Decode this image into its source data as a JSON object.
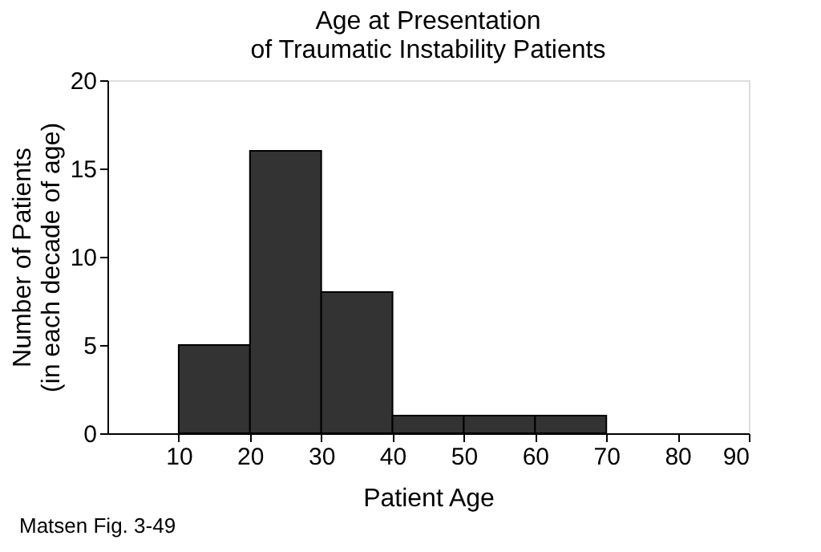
{
  "chart_data": {
    "type": "histogram",
    "title": "Age at Presentation\nof Traumatic Instability Patients",
    "xlabel": "Patient Age",
    "ylabel": "Number of Patients\n(in each decade of age)",
    "bins": [
      10,
      20,
      30,
      40,
      50,
      60,
      70
    ],
    "values": [
      5,
      16,
      8,
      1,
      1,
      1
    ],
    "color": "#333333",
    "xlim": [
      0,
      90
    ],
    "xticks": [
      10,
      20,
      30,
      40,
      50,
      60,
      70,
      80,
      90
    ],
    "ylim": [
      0,
      20
    ],
    "yticks": [
      0,
      5,
      10,
      15,
      20
    ],
    "grid": false,
    "annotations": [
      "Matsen Fig. 3-49"
    ]
  }
}
